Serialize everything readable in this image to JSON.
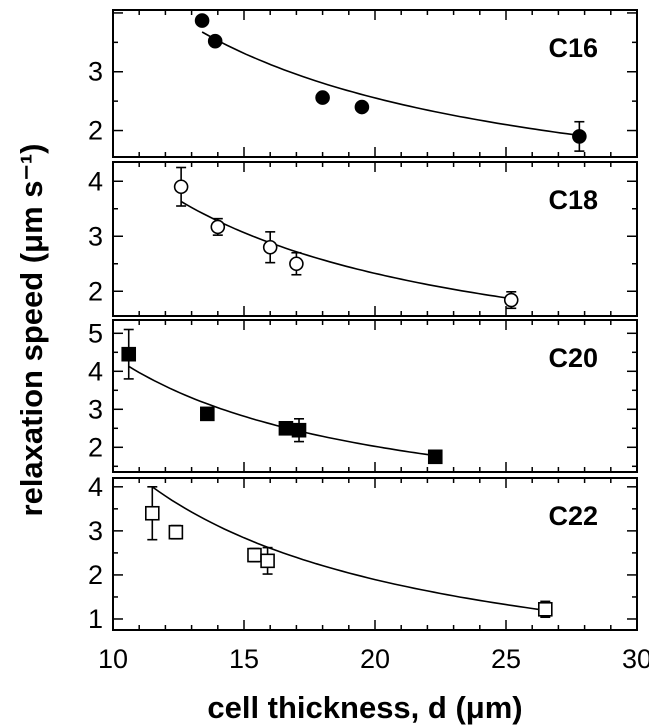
{
  "chart_data": {
    "type": "scatter",
    "xlabel": "cell thickness, d  (μm)",
    "ylabel": "relaxation speed  (μm s⁻¹)",
    "xlim": [
      10,
      30
    ],
    "xticks": [
      "10",
      "15",
      "20",
      "25",
      "30"
    ],
    "grid": false,
    "panels": [
      {
        "label": "C16",
        "ylim": [
          1.55,
          4.05
        ],
        "yticks": [
          2,
          3
        ],
        "marker": "filled-circle",
        "points": [
          {
            "x": 13.4,
            "y": 3.87,
            "err": 0
          },
          {
            "x": 13.9,
            "y": 3.52,
            "err": 0
          },
          {
            "x": 18.0,
            "y": 2.56,
            "err": 0
          },
          {
            "x": 19.5,
            "y": 2.4,
            "err": 0
          },
          {
            "x": 27.8,
            "y": 1.9,
            "err": 0.25
          }
        ],
        "fit": {
          "a": 45.5,
          "b": 0.28
        }
      },
      {
        "label": "C18",
        "ylim": [
          1.55,
          4.35
        ],
        "yticks": [
          2,
          3,
          4
        ],
        "marker": "open-circle",
        "points": [
          {
            "x": 12.6,
            "y": 3.9,
            "err": 0.35
          },
          {
            "x": 14.0,
            "y": 3.17,
            "err": 0.15
          },
          {
            "x": 16.0,
            "y": 2.8,
            "err": 0.28
          },
          {
            "x": 17.0,
            "y": 2.5,
            "err": 0.2
          },
          {
            "x": 25.2,
            "y": 1.84,
            "err": 0.15
          }
        ],
        "fit": {
          "a": 44.5,
          "b": 0.1
        }
      },
      {
        "label": "C20",
        "ylim": [
          1.35,
          5.35
        ],
        "yticks": [
          2,
          3,
          4,
          5
        ],
        "marker": "filled-square",
        "points": [
          {
            "x": 10.6,
            "y": 4.45,
            "err": 0.65
          },
          {
            "x": 13.6,
            "y": 2.88,
            "err": 0
          },
          {
            "x": 16.6,
            "y": 2.5,
            "err": 0.1
          },
          {
            "x": 17.1,
            "y": 2.45,
            "err": 0.3
          },
          {
            "x": 22.3,
            "y": 1.75,
            "err": 0
          }
        ],
        "fit": {
          "a": 47.5,
          "b": -0.35
        }
      },
      {
        "label": "C22",
        "ylim": [
          0.75,
          4.2
        ],
        "yticks": [
          1,
          2,
          3,
          4
        ],
        "marker": "open-square",
        "points": [
          {
            "x": 11.5,
            "y": 3.4,
            "err": 0.6
          },
          {
            "x": 12.4,
            "y": 2.97,
            "err": 0.15
          },
          {
            "x": 15.4,
            "y": 2.45,
            "err": 0.15
          },
          {
            "x": 15.9,
            "y": 2.32,
            "err": 0.3
          },
          {
            "x": 26.5,
            "y": 1.22,
            "err": 0.18
          }
        ],
        "fit": {
          "a": 56.9,
          "b": -0.95
        }
      }
    ]
  }
}
